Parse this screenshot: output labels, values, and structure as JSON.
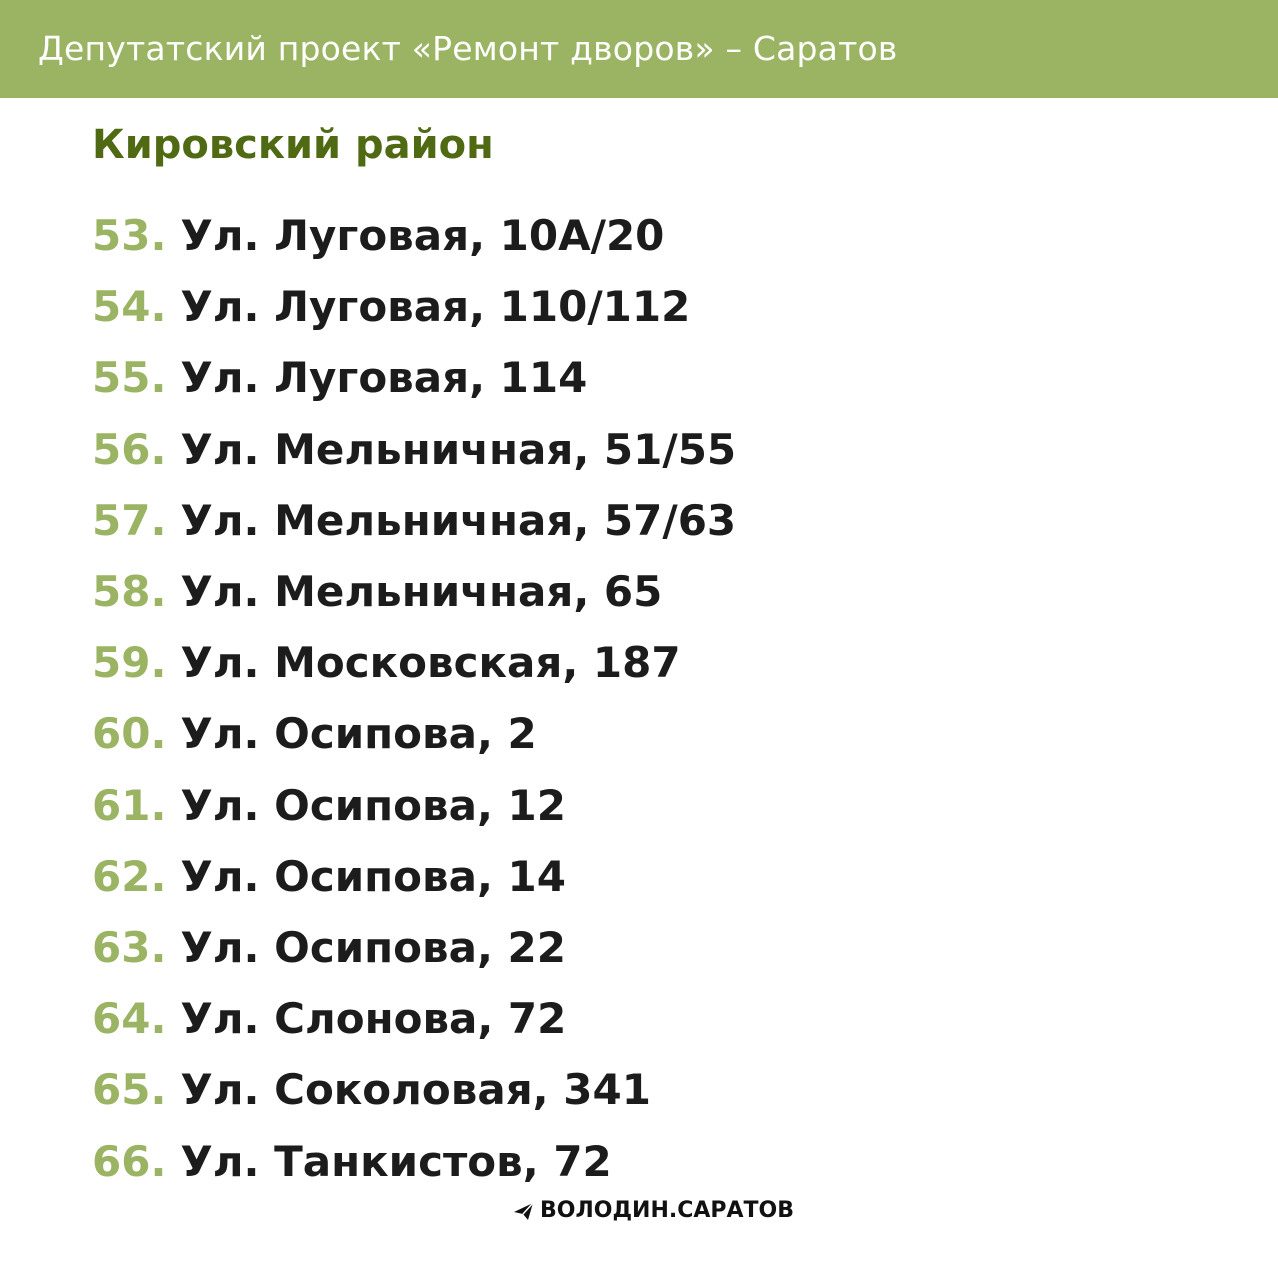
{
  "header": {
    "title": "Депутатский проект «Ремонт дворов» – Саратов",
    "background_color": "#9bb463"
  },
  "district": {
    "title": "Кировский район",
    "color": "#4f6a12"
  },
  "addresses": [
    {
      "number": "53.",
      "text": "Ул. Луговая, 10А/20"
    },
    {
      "number": "54.",
      "text": "Ул. Луговая, 110/112"
    },
    {
      "number": "55.",
      "text": "Ул. Луговая, 114"
    },
    {
      "number": "56.",
      "text": "Ул. Мельничная, 51/55"
    },
    {
      "number": "57.",
      "text": "Ул. Мельничная, 57/63"
    },
    {
      "number": "58.",
      "text": "Ул. Мельничная, 65"
    },
    {
      "number": "59.",
      "text": "Ул. Московская, 187"
    },
    {
      "number": "60.",
      "text": "Ул. Осипова, 2"
    },
    {
      "number": "61.",
      "text": "Ул. Осипова, 12"
    },
    {
      "number": "62.",
      "text": "Ул. Осипова, 14"
    },
    {
      "number": "63.",
      "text": "Ул. Осипова, 22"
    },
    {
      "number": "64.",
      "text": "Ул. Слонова, 72"
    },
    {
      "number": "65.",
      "text": "Ул. Соколовая, 341"
    },
    {
      "number": "66.",
      "text": "Ул. Танкистов, 72"
    }
  ],
  "footer": {
    "brand": "ВОЛОДИН.САРАТОВ",
    "icon": "telegram-plane-icon"
  },
  "colors": {
    "number_color": "#9bb463",
    "text_color": "#1c1c1c"
  }
}
